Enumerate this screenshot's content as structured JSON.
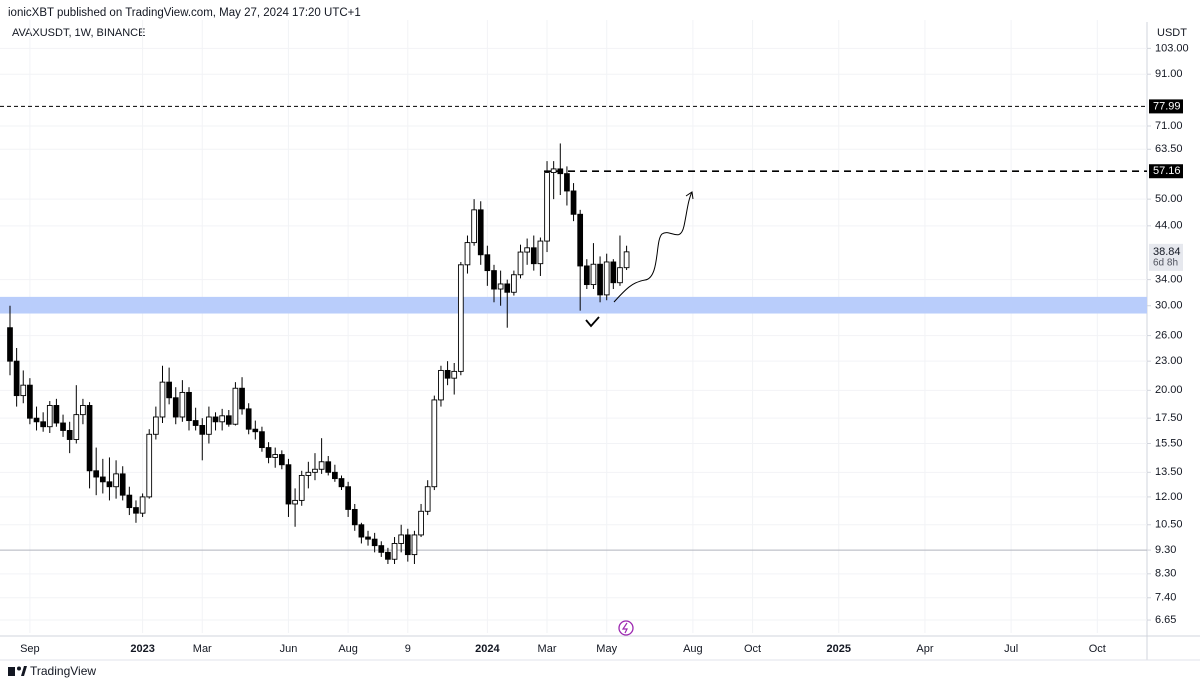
{
  "header": "ionicXBT published on TradingView.com, May 27, 2024 17:20 UTC+1",
  "footer": {
    "brand": "TradingView"
  },
  "chart_data": {
    "type": "candlestick",
    "title": "AVAXUSDT, 1W, BINANCE",
    "currency": "USDT",
    "log_scale": true,
    "grid": true,
    "up_color": "#ffffff",
    "down_color": "#000000",
    "categories": [
      null,
      null,
      null,
      "Sep",
      null,
      null,
      null,
      null,
      null,
      null,
      null,
      null,
      null,
      null,
      null,
      null,
      null,
      null,
      null,
      null,
      "2023",
      null,
      null,
      null,
      null,
      null,
      null,
      null,
      null,
      "Mar",
      null,
      null,
      null,
      null,
      null,
      null,
      null,
      null,
      null,
      null,
      null,
      null,
      "Jun",
      null,
      null,
      null,
      null,
      null,
      null,
      null,
      null,
      "Aug",
      null,
      null,
      null,
      null,
      null,
      null,
      null,
      null,
      "9",
      null,
      null,
      null,
      null,
      null,
      null,
      null,
      null,
      null,
      null,
      null,
      "2024",
      null,
      null,
      null,
      null,
      null,
      null,
      null,
      null,
      "Mar",
      null,
      null,
      null,
      null,
      null,
      null,
      null,
      null,
      "May",
      null,
      null,
      null,
      null,
      null,
      null,
      null,
      null,
      null,
      null,
      null,
      null,
      "Aug",
      null,
      null,
      null,
      null,
      null,
      null,
      null,
      null,
      "Oct",
      null,
      null,
      null,
      null,
      null,
      null,
      null,
      null,
      null,
      null,
      null,
      null,
      "2025",
      null,
      null,
      null,
      null,
      null,
      null,
      null,
      null,
      null,
      null,
      null,
      null,
      "Apr",
      null,
      null,
      null,
      null,
      null,
      null,
      null,
      null,
      null,
      null,
      null,
      null,
      "Jul",
      null,
      null,
      null,
      null,
      null,
      null,
      null,
      null,
      null,
      null,
      null,
      null,
      "Oct"
    ],
    "open": [
      27,
      23,
      19.5,
      20.5,
      17.5,
      17.2,
      16.8,
      18.6,
      17.1,
      16.5,
      15.8,
      17.8,
      18.6,
      13.6,
      13.2,
      12.9,
      12.6,
      13.4,
      12.1,
      11.4,
      11.1,
      12,
      16.2,
      17.6,
      20.8,
      19.3,
      17.6,
      19.8,
      17.3,
      16.9,
      16.2,
      17.6,
      17.2,
      17.7,
      17,
      20.2,
      18.3,
      16.6,
      16.4,
      15.2,
      14.5,
      14.7,
      14,
      11.6,
      11.8,
      13.3,
      13.5,
      13.7,
      14.2,
      13.5,
      13.1,
      12.6,
      11.3,
      10.5,
      9.9,
      9.8,
      9.5,
      9.2,
      8.9,
      9.6,
      10,
      9.1,
      10,
      11.2,
      12.6,
      19.1,
      22,
      21.2,
      21.9,
      36.5,
      40.6,
      47.5,
      38.3,
      35.5,
      32.5,
      33.3,
      32,
      34.8,
      38.8,
      39.6,
      36.7,
      40.9,
      56.8,
      57.8,
      56.5,
      52,
      46.5,
      36.3,
      33.2,
      36.6,
      31.6,
      37,
      33.5,
      36,
      null,
      null,
      null,
      null,
      null,
      null,
      null,
      null,
      null,
      null,
      null,
      null,
      null,
      null,
      null,
      null,
      null,
      null,
      null,
      null,
      null,
      null,
      null,
      null,
      null,
      null,
      null,
      null,
      null,
      null,
      null,
      null,
      null,
      null,
      null,
      null,
      null,
      null,
      null,
      null,
      null,
      null,
      null,
      null,
      null,
      null,
      null,
      null,
      null,
      null,
      null,
      null,
      null,
      null,
      null,
      null,
      null,
      null,
      null,
      null,
      null,
      null,
      null,
      null,
      null,
      null,
      null,
      null,
      null,
      null,
      null
    ],
    "high": [
      30,
      24.5,
      22,
      21.2,
      18.5,
      18,
      19,
      19.2,
      17.8,
      17.2,
      20.5,
      19.2,
      18.9,
      15.2,
      14.4,
      14.5,
      14.3,
      13.9,
      12.6,
      11.8,
      12.2,
      16.6,
      18.5,
      22.5,
      22.3,
      20.3,
      21,
      20.3,
      18.4,
      17.5,
      18.5,
      18,
      18.3,
      18.2,
      20.8,
      21.3,
      18.8,
      17.3,
      16.8,
      15.6,
      15.2,
      15,
      14.4,
      12.5,
      13.6,
      14.2,
      14.8,
      15.9,
      14.6,
      14,
      13.3,
      12.9,
      11.6,
      10.6,
      10.2,
      10.1,
      9.7,
      9.4,
      9.9,
      10.5,
      10.3,
      10.2,
      11.6,
      13,
      19.5,
      22.5,
      23,
      22.8,
      37,
      42,
      50,
      49.5,
      40,
      36.5,
      35.5,
      34,
      35.5,
      40.2,
      41.4,
      42,
      41.6,
      60,
      60,
      65.3,
      58.5,
      54,
      47.5,
      37.5,
      40.5,
      38,
      38.5,
      37.5,
      42,
      40,
      null,
      null,
      null,
      null,
      null,
      null,
      null,
      null,
      null,
      null,
      null,
      null,
      null,
      null,
      null,
      null,
      null,
      null,
      null,
      null,
      null,
      null,
      null,
      null,
      null,
      null,
      null,
      null,
      null,
      null,
      null,
      null,
      null,
      null,
      null,
      null,
      null,
      null,
      null,
      null,
      null,
      null,
      null,
      null,
      null,
      null,
      null,
      null,
      null,
      null,
      null,
      null,
      null,
      null,
      null,
      null,
      null,
      null,
      null,
      null,
      null,
      null,
      null,
      null,
      null,
      null,
      null,
      null,
      null,
      null,
      null
    ],
    "low": [
      21.5,
      18.5,
      18.8,
      17,
      16.5,
      16.4,
      16.3,
      16.8,
      16,
      14.8,
      15.5,
      17,
      12.5,
      12.1,
      12.2,
      11.8,
      11.9,
      11.8,
      11,
      10.6,
      10.9,
      11.9,
      15.8,
      17.1,
      18.7,
      17,
      17.2,
      16.5,
      16.5,
      14.3,
      15.5,
      16.5,
      16.5,
      16.8,
      16.9,
      17.8,
      16.2,
      15.8,
      14.9,
      14.1,
      13.8,
      13.7,
      10.9,
      10.4,
      11.5,
      12.5,
      13,
      13.4,
      13.3,
      12.9,
      12.4,
      10.9,
      10.2,
      9.6,
      9.5,
      9.2,
      9,
      8.7,
      8.7,
      9.2,
      8.8,
      8.7,
      9.9,
      11,
      12.4,
      18.5,
      20.5,
      19.6,
      21.5,
      35,
      40,
      36.5,
      33,
      30.5,
      30,
      27,
      31.5,
      34.2,
      36.5,
      35.5,
      34.6,
      38.8,
      50,
      51,
      48.5,
      45,
      29.3,
      32.5,
      32.5,
      30.5,
      30.8,
      32.5,
      33,
      35.6,
      null,
      null,
      null,
      null,
      null,
      null,
      null,
      null,
      null,
      null,
      null,
      null,
      null,
      null,
      null,
      null,
      null,
      null,
      null,
      null,
      null,
      null,
      null,
      null,
      null,
      null,
      null,
      null,
      null,
      null,
      null,
      null,
      null,
      null,
      null,
      null,
      null,
      null,
      null,
      null,
      null,
      null,
      null,
      null,
      null,
      null,
      null,
      null,
      null,
      null,
      null,
      null,
      null,
      null,
      null,
      null,
      null,
      null,
      null,
      null,
      null,
      null,
      null,
      null,
      null,
      null,
      null,
      null,
      null,
      null,
      null
    ],
    "close": [
      23,
      19.5,
      20.5,
      17.5,
      17.2,
      16.8,
      18.6,
      17.1,
      16.5,
      15.8,
      17.8,
      18.6,
      13.6,
      13.2,
      12.9,
      12.6,
      13.4,
      12.1,
      11.4,
      11.1,
      12,
      16.2,
      17.6,
      20.8,
      19.3,
      17.6,
      19.8,
      17.3,
      16.9,
      16.2,
      17.6,
      17.2,
      17.7,
      17,
      20.2,
      18.3,
      16.6,
      16.4,
      15.2,
      14.5,
      14.7,
      14,
      11.6,
      11.8,
      13.3,
      13.5,
      13.7,
      14.2,
      13.5,
      13.1,
      12.6,
      11.3,
      10.5,
      9.9,
      9.8,
      9.5,
      9.2,
      8.9,
      9.6,
      10,
      9.1,
      10,
      11.2,
      12.6,
      19.1,
      22,
      21.2,
      21.9,
      36.5,
      40.6,
      47.5,
      38.3,
      35.5,
      32.5,
      33.3,
      32,
      34.8,
      38.8,
      39.6,
      36.7,
      40.9,
      56.8,
      57.8,
      56.5,
      52,
      46.5,
      36.3,
      33.2,
      36.6,
      31.6,
      37,
      33.5,
      36,
      38.84,
      null,
      null,
      null,
      null,
      null,
      null,
      null,
      null,
      null,
      null,
      null,
      null,
      null,
      null,
      null,
      null,
      null,
      null,
      null,
      null,
      null,
      null,
      null,
      null,
      null,
      null,
      null,
      null,
      null,
      null,
      null,
      null,
      null,
      null,
      null,
      null,
      null,
      null,
      null,
      null,
      null,
      null,
      null,
      null,
      null,
      null,
      null,
      null,
      null,
      null,
      null,
      null,
      null,
      null,
      null,
      null,
      null,
      null,
      null,
      null,
      null,
      null,
      null,
      null,
      null,
      null,
      null,
      null,
      null,
      null,
      null
    ],
    "ylim": [
      6.25,
      118
    ],
    "yticks": [
      {
        "value": 103,
        "label": "103.00"
      },
      {
        "value": 91,
        "label": "91.00"
      },
      {
        "value": 71,
        "label": "71.00"
      },
      {
        "value": 63.5,
        "label": "63.50"
      },
      {
        "value": 50,
        "label": "50.00"
      },
      {
        "value": 44,
        "label": "44.00"
      },
      {
        "value": 34,
        "label": "34.00"
      },
      {
        "value": 30,
        "label": "30.00"
      },
      {
        "value": 26,
        "label": "26.00"
      },
      {
        "value": 23,
        "label": "23.00"
      },
      {
        "value": 20,
        "label": "20.00"
      },
      {
        "value": 17.5,
        "label": "17.50"
      },
      {
        "value": 15.5,
        "label": "15.50"
      },
      {
        "value": 13.5,
        "label": "13.50"
      },
      {
        "value": 12,
        "label": "12.00"
      },
      {
        "value": 10.5,
        "label": "10.50"
      },
      {
        "value": 9.3,
        "label": "9.30"
      },
      {
        "value": 8.3,
        "label": "8.30"
      },
      {
        "value": 7.4,
        "label": "7.40"
      },
      {
        "value": 6.65,
        "label": "6.65"
      }
    ],
    "price_lines": [
      77.99,
      57.16
    ],
    "hlines": [
      9.3
    ],
    "zone": {
      "low": 28.9,
      "high": 31.3,
      "color": "#b9cdfb"
    },
    "last_price": 38.84,
    "countdown": "6d 8h"
  }
}
